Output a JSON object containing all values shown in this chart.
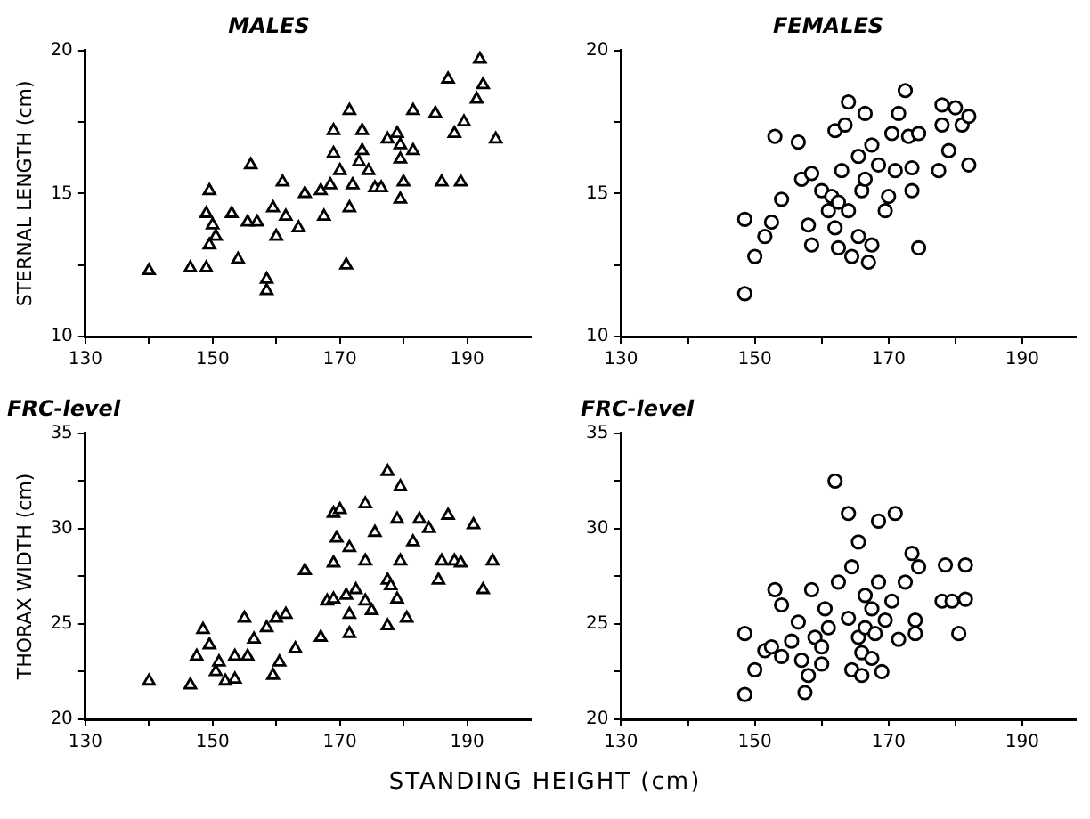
{
  "chart_data": [
    {
      "type": "scatter",
      "title": "MALES",
      "ylabel": "STERNAL LENGTH (cm)",
      "marker": "triangle",
      "color": "#000000",
      "x": [
        140,
        146.5,
        149,
        154,
        149.5,
        150.5,
        150,
        149,
        149.5,
        153,
        155.5,
        157,
        156,
        158.5,
        158.5,
        159.5,
        161,
        161.5,
        160,
        163.5,
        164.5,
        167.5,
        167,
        168.5,
        169,
        169,
        171.5,
        171,
        171.5,
        172,
        173.5,
        173,
        174.5,
        175.5,
        177.5,
        179,
        179.5,
        179.5,
        180,
        181.5,
        181.5,
        185,
        186,
        189,
        187,
        188,
        189.5,
        191.5,
        192.5,
        192,
        194.5,
        179.5,
        173.5,
        176.5,
        170
      ],
      "values": [
        12.3,
        12.4,
        12.4,
        12.7,
        13.2,
        13.5,
        13.9,
        14.3,
        15.1,
        14.3,
        14.0,
        14.0,
        16.0,
        12.0,
        11.6,
        14.5,
        15.4,
        14.2,
        13.5,
        13.8,
        15.0,
        14.2,
        15.1,
        15.3,
        16.4,
        17.2,
        17.9,
        12.5,
        14.5,
        15.3,
        17.2,
        16.1,
        15.8,
        15.2,
        16.9,
        17.1,
        16.2,
        14.8,
        15.4,
        16.5,
        17.9,
        17.8,
        15.4,
        15.4,
        19.0,
        17.1,
        17.5,
        18.3,
        18.8,
        19.7,
        16.9,
        16.7,
        16.5,
        15.2,
        15.8
      ],
      "xlim": [
        130,
        200
      ],
      "ylim": [
        10,
        20
      ],
      "xticks": [
        130,
        {
          "value": 140,
          "label": null
        },
        150,
        {
          "value": 160,
          "label": null
        },
        170,
        {
          "value": 180,
          "label": null
        },
        190
      ],
      "yticks": [
        10,
        {
          "value": 12.5,
          "label": null
        },
        15,
        {
          "value": 17.5,
          "label": null
        },
        20
      ]
    },
    {
      "type": "scatter",
      "title": "FEMALES",
      "marker": "circle",
      "color": "#000000",
      "x": [
        148.5,
        150,
        148.5,
        151.5,
        152.5,
        154,
        153,
        156.5,
        157,
        158.5,
        158,
        158.5,
        160,
        161,
        162,
        162.5,
        162,
        163.5,
        164,
        164.5,
        165.5,
        166.5,
        167,
        167.5,
        166,
        164,
        163,
        165.5,
        167.5,
        168.5,
        169.5,
        170,
        170.5,
        171.5,
        172.5,
        171,
        173.5,
        173.5,
        173,
        174.5,
        174.5,
        177.5,
        179,
        178,
        178,
        180,
        181,
        182,
        182,
        166.5,
        161.5,
        162.5
      ],
      "values": [
        11.5,
        12.8,
        14.1,
        13.5,
        14.0,
        14.8,
        17.0,
        16.8,
        15.5,
        15.7,
        13.9,
        13.2,
        15.1,
        14.4,
        13.8,
        13.1,
        17.2,
        17.4,
        18.2,
        12.8,
        13.5,
        17.8,
        12.6,
        13.2,
        15.1,
        14.4,
        15.8,
        16.3,
        16.7,
        16.0,
        14.4,
        14.9,
        17.1,
        17.8,
        18.6,
        15.8,
        15.1,
        15.9,
        17.0,
        17.1,
        13.1,
        15.8,
        16.5,
        17.4,
        18.1,
        18.0,
        17.4,
        17.7,
        16.0,
        15.5,
        14.9,
        14.7
      ],
      "xlim": [
        130,
        198
      ],
      "ylim": [
        10,
        20
      ],
      "xticks": [
        130,
        {
          "value": 140,
          "label": null
        },
        150,
        {
          "value": 160,
          "label": null
        },
        170,
        {
          "value": 180,
          "label": null
        },
        190
      ],
      "yticks": [
        10,
        {
          "value": 12.5,
          "label": null
        },
        15,
        {
          "value": 17.5,
          "label": null
        },
        20
      ]
    },
    {
      "type": "scatter",
      "title": "FRC-level",
      "ylabel": "THORAX WIDTH (cm)",
      "xlabel": "STANDING HEIGHT (cm)",
      "marker": "triangle",
      "color": "#000000",
      "x": [
        140,
        146.5,
        148.5,
        147.5,
        149.5,
        150.5,
        152,
        153.5,
        151,
        153.5,
        155.5,
        155,
        156.5,
        158.5,
        160,
        161.5,
        159.5,
        160.5,
        163,
        164.5,
        167,
        168,
        169,
        169.5,
        169,
        170,
        171.5,
        171,
        172.5,
        174,
        171.5,
        171.5,
        174,
        175.5,
        174,
        175,
        177.5,
        177.5,
        179.5,
        177.5,
        179,
        179.5,
        179,
        180.5,
        181.5,
        182.5,
        184,
        185.5,
        186,
        187,
        188,
        189,
        191,
        192.5,
        194,
        178,
        169
      ],
      "values": [
        22.0,
        21.8,
        24.7,
        23.3,
        23.9,
        22.5,
        22.0,
        22.1,
        23.0,
        23.3,
        23.3,
        25.3,
        24.2,
        24.8,
        25.3,
        25.5,
        22.3,
        23.0,
        23.7,
        27.8,
        24.3,
        26.2,
        28.2,
        29.5,
        30.8,
        31.0,
        29.0,
        26.5,
        26.8,
        26.2,
        25.5,
        24.5,
        28.3,
        29.8,
        31.3,
        25.7,
        24.9,
        33.0,
        32.2,
        27.3,
        26.3,
        28.3,
        30.5,
        25.3,
        29.3,
        30.5,
        30.0,
        27.3,
        28.3,
        30.7,
        28.3,
        28.2,
        30.2,
        26.8,
        28.3,
        27.0,
        26.3
      ],
      "xlim": [
        130,
        200
      ],
      "ylim": [
        20,
        35
      ],
      "xticks": [
        130,
        {
          "value": 140,
          "label": null
        },
        150,
        {
          "value": 160,
          "label": null
        },
        170,
        {
          "value": 180,
          "label": null
        },
        190
      ],
      "yticks": [
        20,
        {
          "value": 22.5,
          "label": null
        },
        25,
        {
          "value": 27.5,
          "label": null
        },
        30,
        {
          "value": 32.5,
          "label": null
        },
        35
      ]
    },
    {
      "type": "scatter",
      "title": "FRC-level",
      "marker": "circle",
      "color": "#000000",
      "x": [
        148.5,
        148.5,
        150,
        151.5,
        152.5,
        153,
        154,
        154,
        155.5,
        156.5,
        157,
        157.5,
        158,
        158.5,
        159,
        160,
        160.5,
        161,
        160,
        162,
        162.5,
        164,
        165.5,
        164.5,
        164,
        165.5,
        166,
        164.5,
        166,
        167.5,
        169,
        168.5,
        171,
        167.5,
        166.5,
        168.5,
        169.5,
        170.5,
        172.5,
        171.5,
        173.5,
        174,
        174,
        174.5,
        178,
        178.5,
        179.5,
        180.5,
        181.5,
        181.5,
        166.5,
        168
      ],
      "values": [
        21.3,
        24.5,
        22.6,
        23.6,
        23.8,
        26.8,
        26.0,
        23.3,
        24.1,
        25.1,
        23.1,
        21.4,
        22.3,
        26.8,
        24.3,
        23.8,
        25.8,
        24.8,
        22.9,
        32.5,
        27.2,
        30.8,
        29.3,
        28.0,
        25.3,
        24.3,
        23.5,
        22.6,
        22.3,
        23.2,
        22.5,
        30.4,
        30.8,
        25.8,
        26.5,
        27.2,
        25.2,
        26.2,
        27.2,
        24.2,
        28.7,
        25.2,
        24.5,
        28.0,
        26.2,
        28.1,
        26.2,
        24.5,
        28.1,
        26.3,
        24.8,
        24.5
      ],
      "xlim": [
        130,
        198
      ],
      "ylim": [
        20,
        35
      ],
      "xticks": [
        130,
        {
          "value": 140,
          "label": null
        },
        150,
        {
          "value": 160,
          "label": null
        },
        170,
        {
          "value": 180,
          "label": null
        },
        190
      ],
      "yticks": [
        20,
        {
          "value": 22.5,
          "label": null
        },
        25,
        {
          "value": 27.5,
          "label": null
        },
        30,
        {
          "value": 32.5,
          "label": null
        },
        35
      ]
    }
  ]
}
